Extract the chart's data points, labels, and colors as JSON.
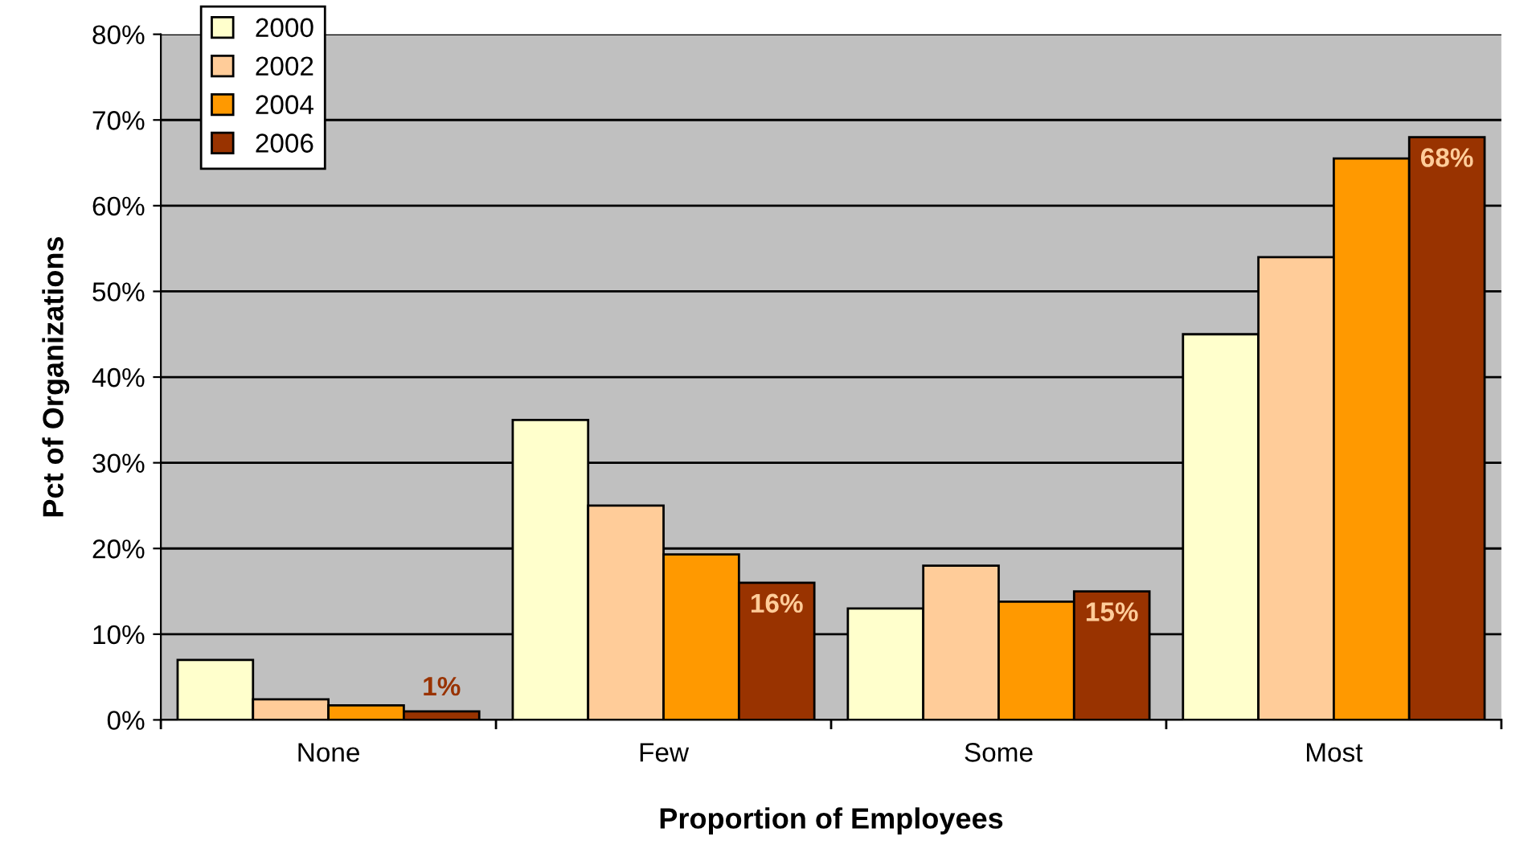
{
  "chart_data": {
    "type": "bar",
    "xlabel": "Proportion of Employees",
    "ylabel": "Pct of Organizations",
    "categories": [
      "None",
      "Few",
      "Some",
      "Most"
    ],
    "series": [
      {
        "name": "2000",
        "color": "#ffffcc",
        "values": [
          7,
          35,
          13,
          45
        ]
      },
      {
        "name": "2002",
        "color": "#ffcc99",
        "values": [
          2.4,
          25,
          18,
          54
        ]
      },
      {
        "name": "2004",
        "color": "#ff9900",
        "values": [
          1.7,
          19.3,
          13.8,
          65.5
        ]
      },
      {
        "name": "2006",
        "color": "#993300",
        "values": [
          1,
          16,
          15,
          68
        ],
        "value_labels": [
          "1%",
          "16%",
          "15%",
          "68%"
        ]
      }
    ],
    "ylim": [
      0,
      80
    ],
    "yticks": [
      {
        "value": 0,
        "label": "0%"
      },
      {
        "value": 10,
        "label": "10%"
      },
      {
        "value": 20,
        "label": "20%"
      },
      {
        "value": 30,
        "label": "30%"
      },
      {
        "value": 40,
        "label": "40%"
      },
      {
        "value": 50,
        "label": "50%"
      },
      {
        "value": 60,
        "label": "60%"
      },
      {
        "value": 70,
        "label": "70%"
      },
      {
        "value": 80,
        "label": "80%"
      }
    ],
    "grid": "y",
    "legend": "top left"
  }
}
